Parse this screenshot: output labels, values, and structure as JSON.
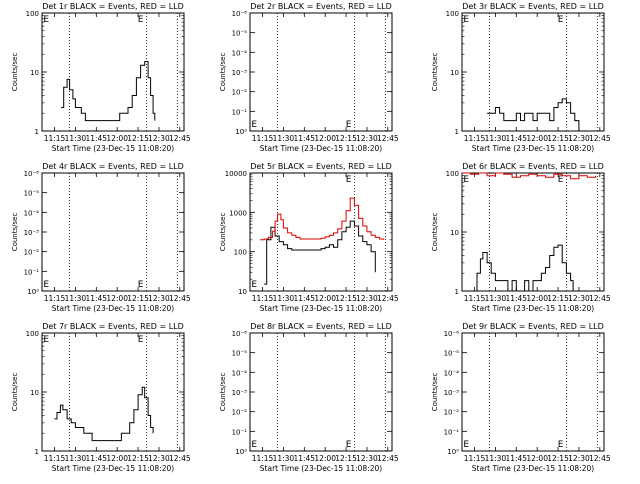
{
  "chart_data": [
    {
      "type": "line",
      "title": "Det 1r BLACK = Events, RED = LLD",
      "xlabel": "Start Time (23-Dec-15 11:08:20)",
      "ylabel": "Counts/sec",
      "yscale": "log",
      "ylim": [
        1,
        100
      ],
      "yticks": [
        "1",
        "10",
        "100"
      ],
      "xticks": [
        "11:15",
        "11:30",
        "11:45",
        "12:00",
        "12:15",
        "12:30",
        "12:45"
      ],
      "markers": [
        "E",
        "E"
      ],
      "series": [
        {
          "color": "#000000",
          "x": [
            11.33,
            11.36,
            11.4,
            11.43,
            11.47,
            11.5,
            11.53,
            11.57,
            11.62,
            11.67,
            11.72,
            11.78,
            11.83,
            11.88,
            11.93,
            11.98,
            12.03,
            12.08,
            12.13,
            12.18,
            12.23,
            12.28,
            12.33,
            12.37,
            12.4,
            12.43,
            12.45
          ],
          "values": [
            2.5,
            5.5,
            7.5,
            5,
            3.5,
            2.5,
            2.5,
            2,
            1.5,
            1.5,
            1.5,
            1.5,
            1.5,
            1.5,
            1.5,
            1.5,
            2,
            2,
            2.5,
            4,
            8,
            13,
            15,
            8,
            4,
            2,
            1.5
          ]
        }
      ]
    },
    {
      "type": "line",
      "title": "Det 2r BLACK = Events, RED = LLD",
      "xlabel": "Start Time (23-Dec-15 11:08:20)",
      "ylabel": "Counts/sec",
      "yscale": "log",
      "yticks": [
        "10⁰",
        "10⁻¹",
        "10⁻²",
        "10⁻³",
        "10⁻⁴",
        "10⁻⁵",
        "10⁻⁶"
      ],
      "xticks": [
        "11:15",
        "11:30",
        "11:45",
        "12:00",
        "12:15",
        "12:30",
        "12:45"
      ],
      "markers": [
        "E",
        "E"
      ],
      "series": []
    },
    {
      "type": "line",
      "title": "Det 3r BLACK = Events, RED = LLD",
      "xlabel": "Start Time (23-Dec-15 11:08:20)",
      "ylabel": "Counts/sec",
      "yscale": "log",
      "ylim": [
        1,
        100
      ],
      "yticks": [
        "1",
        "10",
        "100"
      ],
      "xticks": [
        "11:15",
        "11:30",
        "11:45",
        "12:00",
        "12:15",
        "12:30",
        "12:45"
      ],
      "markers": [
        "E",
        "E"
      ],
      "series": [
        {
          "color": "#000000",
          "x": [
            11.4,
            11.45,
            11.5,
            11.55,
            11.6,
            11.65,
            11.7,
            11.75,
            11.8,
            11.85,
            11.9,
            11.95,
            12.0,
            12.05,
            12.1,
            12.15,
            12.2,
            12.25,
            12.3,
            12.35,
            12.4,
            12.45,
            12.5
          ],
          "values": [
            2,
            2,
            2.5,
            2,
            1.5,
            1.5,
            1.5,
            2,
            1.5,
            2,
            2,
            1.5,
            2,
            2,
            2,
            1.5,
            2.5,
            3,
            3.5,
            3,
            2,
            1.5,
            1
          ]
        }
      ]
    },
    {
      "type": "line",
      "title": "Det 4r BLACK = Events, RED = LLD",
      "xlabel": "Start Time (23-Dec-15 11:08:20)",
      "ylabel": "Counts/sec",
      "yscale": "log",
      "yticks": [
        "10⁰",
        "10⁻¹",
        "10⁻²",
        "10⁻³",
        "10⁻⁴",
        "10⁻⁵",
        "10⁻⁶"
      ],
      "xticks": [
        "11:15",
        "11:30",
        "11:45",
        "12:00",
        "12:15",
        "12:30",
        "12:45"
      ],
      "markers": [
        "E",
        "E"
      ],
      "series": []
    },
    {
      "type": "line",
      "title": "Det 5r BLACK = Events, RED = LLD",
      "xlabel": "Start Time (23-Dec-15 11:08:20)",
      "ylabel": "Counts/sec",
      "yscale": "log",
      "ylim": [
        10,
        10000
      ],
      "yticks": [
        "10",
        "100",
        "1000",
        "10000"
      ],
      "xticks": [
        "11:15",
        "11:30",
        "11:45",
        "12:00",
        "12:15",
        "12:30",
        "12:45"
      ],
      "markers": [
        "E",
        "E"
      ],
      "series": [
        {
          "color": "#000000",
          "x": [
            11.27,
            11.3,
            11.35,
            11.4,
            11.45,
            11.5,
            11.55,
            11.6,
            11.65,
            11.7,
            11.75,
            11.8,
            11.85,
            11.9,
            11.95,
            12.0,
            12.05,
            12.1,
            12.15,
            12.2,
            12.25,
            12.3,
            12.35,
            12.4,
            12.45,
            12.5,
            12.55,
            12.6
          ],
          "values": [
            15,
            200,
            420,
            250,
            180,
            150,
            120,
            110,
            110,
            110,
            110,
            110,
            110,
            110,
            120,
            130,
            150,
            130,
            200,
            320,
            420,
            600,
            450,
            250,
            180,
            150,
            100,
            30
          ]
        },
        {
          "color": "#dd0000",
          "x": [
            11.22,
            11.27,
            11.32,
            11.37,
            11.4,
            11.43,
            11.47,
            11.5,
            11.55,
            11.6,
            11.65,
            11.7,
            11.75,
            11.8,
            11.85,
            11.9,
            11.95,
            12.0,
            12.05,
            12.1,
            12.15,
            12.2,
            12.25,
            12.3,
            12.35,
            12.4,
            12.45,
            12.5,
            12.55,
            12.6,
            12.65,
            12.7
          ],
          "values": [
            200,
            210,
            230,
            330,
            600,
            900,
            650,
            400,
            300,
            260,
            230,
            210,
            210,
            210,
            210,
            210,
            220,
            240,
            260,
            300,
            380,
            600,
            1100,
            2300,
            1500,
            700,
            450,
            320,
            260,
            230,
            210,
            200
          ]
        }
      ]
    },
    {
      "type": "line",
      "title": "Det 6r BLACK = Events, RED = LLD",
      "xlabel": "Start Time (23-Dec-15 11:08:20)",
      "ylabel": "Counts/sec",
      "yscale": "log",
      "ylim": [
        1,
        100
      ],
      "yticks": [
        "1",
        "10",
        "100"
      ],
      "xticks": [
        "11:15",
        "11:30",
        "11:45",
        "12:00",
        "12:15",
        "12:30",
        "12:45"
      ],
      "markers": [
        "E",
        "E"
      ],
      "series": [
        {
          "color": "#000000",
          "x": [
            11.25,
            11.28,
            11.32,
            11.35,
            11.4,
            11.45,
            11.5,
            11.55,
            11.6,
            11.65,
            11.7,
            11.75,
            11.8,
            11.85,
            11.9,
            11.95,
            12.0,
            12.05,
            12.1,
            12.15,
            12.2,
            12.25,
            12.3,
            12.35,
            12.4,
            12.43
          ],
          "values": [
            1,
            2,
            3.5,
            4.5,
            3,
            2,
            1.5,
            1.5,
            1.5,
            1,
            1.5,
            1,
            1,
            1.5,
            1,
            1.5,
            1.5,
            2,
            2.5,
            4,
            5.5,
            6,
            3,
            2,
            1.5,
            1
          ]
        },
        {
          "color": "#dd0000",
          "x": [
            11.1,
            11.2,
            11.3,
            11.4,
            11.5,
            11.6,
            11.7,
            11.8,
            11.9,
            12.0,
            12.1,
            12.2,
            12.3,
            12.4,
            12.5,
            12.6,
            12.7
          ],
          "values": [
            100,
            95,
            100,
            90,
            100,
            95,
            85,
            90,
            95,
            90,
            85,
            95,
            90,
            80,
            90,
            85,
            90
          ]
        }
      ]
    },
    {
      "type": "line",
      "title": "Det 7r BLACK = Events, RED = LLD",
      "xlabel": "Start Time (23-Dec-15 11:08:20)",
      "ylabel": "Counts/sec",
      "yscale": "log",
      "ylim": [
        1,
        100
      ],
      "yticks": [
        "1",
        "10",
        "100"
      ],
      "xticks": [
        "11:15",
        "11:30",
        "11:45",
        "12:00",
        "12:15",
        "12:30",
        "12:45"
      ],
      "markers": [
        "E",
        "E"
      ],
      "series": [
        {
          "color": "#000000",
          "x": [
            11.25,
            11.28,
            11.32,
            11.35,
            11.4,
            11.45,
            11.5,
            11.55,
            11.6,
            11.65,
            11.7,
            11.75,
            11.8,
            11.85,
            11.9,
            11.95,
            12.0,
            12.05,
            12.1,
            12.15,
            12.2,
            12.25,
            12.3,
            12.33,
            12.37,
            12.4,
            12.43
          ],
          "values": [
            3.5,
            4.5,
            6,
            5,
            3.5,
            3,
            2.5,
            2.5,
            2,
            2,
            1.5,
            1.5,
            1.5,
            1.5,
            1.5,
            1.5,
            1.5,
            2,
            2,
            3,
            5,
            9,
            12,
            8,
            4,
            2.5,
            2
          ]
        }
      ]
    },
    {
      "type": "line",
      "title": "Det 8r BLACK = Events, RED = LLD",
      "xlabel": "Start Time (23-Dec-15 11:08:20)",
      "ylabel": "Counts/sec",
      "yscale": "log",
      "yticks": [
        "10⁰",
        "10⁻¹",
        "10⁻²",
        "10⁻³",
        "10⁻⁴",
        "10⁻⁵",
        "10⁻⁶"
      ],
      "xticks": [
        "11:15",
        "11:30",
        "11:45",
        "12:00",
        "12:15",
        "12:30",
        "12:45"
      ],
      "markers": [
        "E",
        "E"
      ],
      "series": []
    },
    {
      "type": "line",
      "title": "Det 9r BLACK = Events, RED = LLD",
      "xlabel": "Start Time (23-Dec-15 11:08:20)",
      "ylabel": "Counts/sec",
      "yscale": "log",
      "yticks": [
        "10⁰",
        "10⁻¹",
        "10⁻²",
        "10⁻³",
        "10⁻⁴",
        "10⁻⁵",
        "10⁻⁶"
      ],
      "xticks": [
        "11:15",
        "11:30",
        "11:45",
        "12:00",
        "12:15",
        "12:30",
        "12:45"
      ],
      "markers": [
        "E",
        "E"
      ],
      "series": []
    }
  ]
}
